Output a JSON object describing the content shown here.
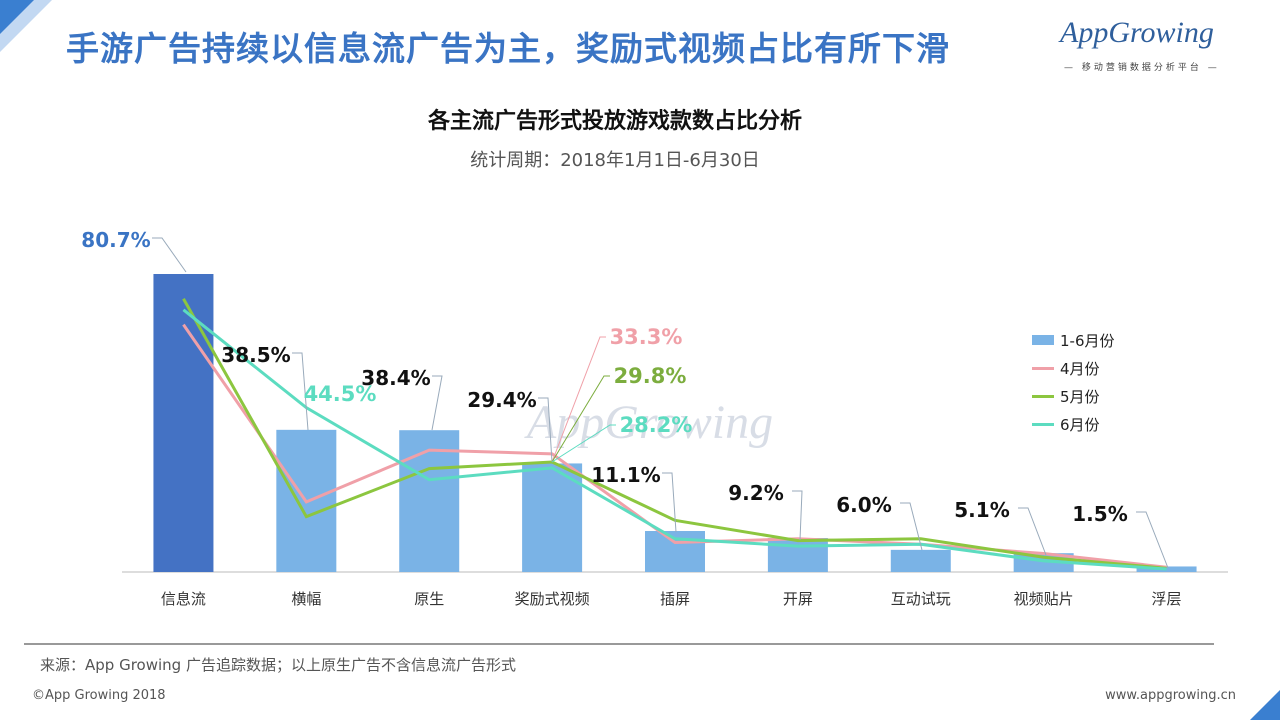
{
  "headline": "手游广告持续以信息流广告为主，奖励式视频占比有所下滑",
  "logo": {
    "text": "AppGrowing",
    "subtitle": "— 移动营销数据分析平台 —"
  },
  "chart_data": {
    "type": "bar",
    "title": "各主流广告形式投放游戏款数占比分析",
    "subtitle": "统计周期：2018年1月1日-6月30日",
    "categories": [
      "信息流",
      "横幅",
      "原生",
      "奖励式视频",
      "插屏",
      "开屏",
      "互动试玩",
      "视频贴片",
      "浮层"
    ],
    "bar_series": {
      "name": "1-6月份",
      "values": [
        80.7,
        38.5,
        38.4,
        29.4,
        11.1,
        9.2,
        6.0,
        5.1,
        1.5
      ],
      "labels": [
        "80.7%",
        "38.5%",
        "38.4%",
        "29.4%",
        "11.1%",
        "9.2%",
        "6.0%",
        "5.1%",
        "1.5%"
      ],
      "color": "#7ab3e6",
      "highlight_color": "#4472c4"
    },
    "line_series": [
      {
        "name": "4月份",
        "color": "#f0a0a8",
        "values": [
          67,
          19,
          33,
          32,
          8,
          9,
          7.5,
          5,
          1.3
        ]
      },
      {
        "name": "5月份",
        "color": "#8cc63f",
        "values": [
          74,
          15,
          28,
          29.8,
          14,
          8.5,
          9,
          4,
          1
        ]
      },
      {
        "name": "6月份",
        "color": "#5cdcc0",
        "values": [
          71,
          44.5,
          25,
          28.2,
          9,
          7,
          7.5,
          3,
          0.8
        ]
      }
    ],
    "callouts": [
      {
        "text": "44.5%",
        "color": "#5cdcc0"
      },
      {
        "text": "33.3%",
        "color": "#f0a0a8"
      },
      {
        "text": "29.8%",
        "color": "#7cad3e"
      },
      {
        "text": "28.2%",
        "color": "#5cdcc0"
      }
    ],
    "watermark": "AppGrowing",
    "legend_position": "right"
  },
  "source_note": "来源：App Growing 广告追踪数据；以上原生广告不含信息流广告形式",
  "copyright": "©App Growing 2018",
  "website": "www.appgrowing.cn"
}
